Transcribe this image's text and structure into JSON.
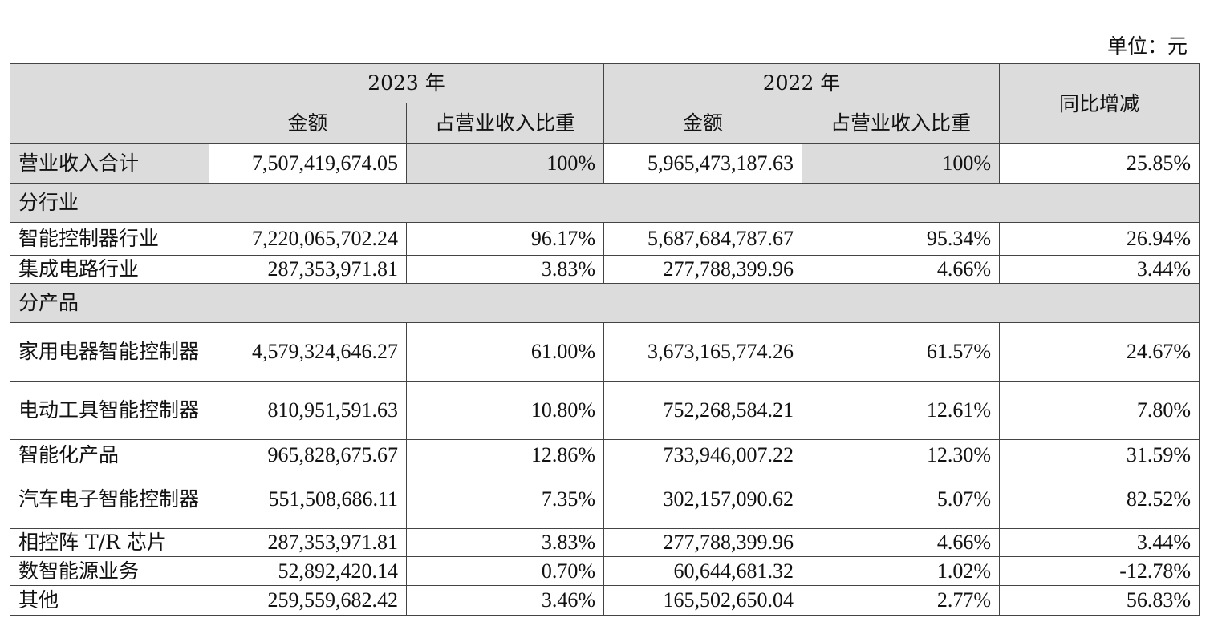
{
  "unit_label": "单位：元",
  "header": {
    "year_2023": "2023 年",
    "year_2022": "2022 年",
    "amount": "金额",
    "share": "占营业收入比重",
    "yoy": "同比增减"
  },
  "total": {
    "label": "营业收入合计",
    "amount_2023": "7,507,419,674.05",
    "share_2023": "100%",
    "amount_2022": "5,965,473,187.63",
    "share_2022": "100%",
    "yoy": "25.85%"
  },
  "sections": [
    {
      "title": "分行业",
      "rows": [
        {
          "label": "智能控制器行业",
          "amount_2023": "7,220,065,702.24",
          "share_2023": "96.17%",
          "amount_2022": "5,687,684,787.67",
          "share_2022": "95.34%",
          "yoy": "26.94%"
        },
        {
          "label": "集成电路行业",
          "amount_2023": "287,353,971.81",
          "share_2023": "3.83%",
          "amount_2022": "277,788,399.96",
          "share_2022": "4.66%",
          "yoy": "3.44%"
        }
      ]
    },
    {
      "title": "分产品",
      "rows": [
        {
          "label": "家用电器智能控制器",
          "amount_2023": "4,579,324,646.27",
          "share_2023": "61.00%",
          "amount_2022": "3,673,165,774.26",
          "share_2022": "61.57%",
          "yoy": "24.67%",
          "wrap": true
        },
        {
          "label": "电动工具智能控制器",
          "amount_2023": "810,951,591.63",
          "share_2023": "10.80%",
          "amount_2022": "752,268,584.21",
          "share_2022": "12.61%",
          "yoy": "7.80%",
          "wrap": true
        },
        {
          "label": "智能化产品",
          "amount_2023": "965,828,675.67",
          "share_2023": "12.86%",
          "amount_2022": "733,946,007.22",
          "share_2022": "12.30%",
          "yoy": "31.59%"
        },
        {
          "label": "汽车电子智能控制器",
          "amount_2023": "551,508,686.11",
          "share_2023": "7.35%",
          "amount_2022": "302,157,090.62",
          "share_2022": "5.07%",
          "yoy": "82.52%",
          "wrap": true
        },
        {
          "label": "相控阵 T/R 芯片",
          "amount_2023": "287,353,971.81",
          "share_2023": "3.83%",
          "amount_2022": "277,788,399.96",
          "share_2022": "4.66%",
          "yoy": "3.44%"
        },
        {
          "label": "数智能源业务",
          "amount_2023": "52,892,420.14",
          "share_2023": "0.70%",
          "amount_2022": "60,644,681.32",
          "share_2022": "1.02%",
          "yoy": "-12.78%"
        },
        {
          "label": "其他",
          "amount_2023": "259,559,682.42",
          "share_2023": "3.46%",
          "amount_2022": "165,502,650.04",
          "share_2022": "2.77%",
          "yoy": "56.83%"
        }
      ]
    }
  ]
}
